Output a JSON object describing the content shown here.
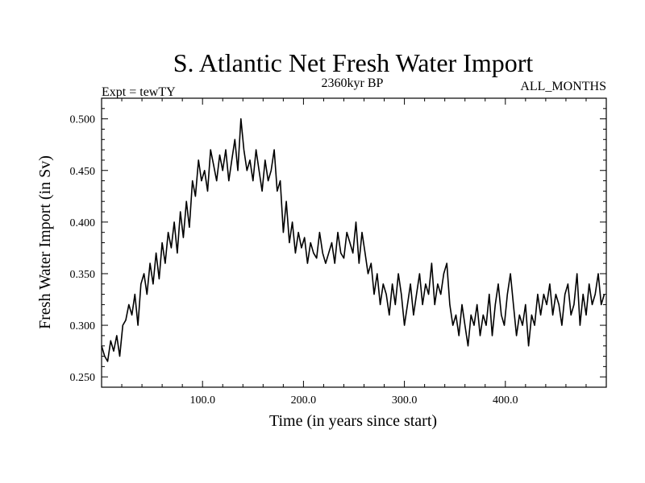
{
  "chart_data": {
    "type": "line",
    "title": "S. Atlantic Net Fresh Water Import",
    "subtitle_left": "Expt = tewTY",
    "subtitle_center": "2360kyr BP",
    "subtitle_right": "ALL_MONTHS",
    "xlabel": "Time (in years since start)",
    "ylabel": "Fresh Water Import (in Sv)",
    "xlim": [
      0,
      500
    ],
    "ylim": [
      0.24,
      0.52
    ],
    "xticks": [
      100,
      200,
      300,
      400
    ],
    "xtick_labels": [
      "100.0",
      "200.0",
      "300.0",
      "400.0"
    ],
    "yticks": [
      0.25,
      0.3,
      0.35,
      0.4,
      0.45,
      0.5
    ],
    "ytick_labels": [
      "0.250",
      "0.300",
      "0.350",
      "0.400",
      "0.450",
      "0.500"
    ],
    "grid": false,
    "series": [
      {
        "name": "fresh water import",
        "x": [
          0,
          3,
          6,
          9,
          12,
          15,
          18,
          21,
          24,
          27,
          30,
          33,
          36,
          39,
          42,
          45,
          48,
          51,
          54,
          57,
          60,
          63,
          66,
          69,
          72,
          75,
          78,
          81,
          84,
          87,
          90,
          93,
          96,
          99,
          102,
          105,
          108,
          111,
          114,
          117,
          120,
          123,
          126,
          129,
          132,
          135,
          138,
          141,
          144,
          147,
          150,
          153,
          156,
          159,
          162,
          165,
          168,
          171,
          174,
          177,
          180,
          183,
          186,
          189,
          192,
          195,
          198,
          201,
          204,
          207,
          210,
          213,
          216,
          219,
          222,
          225,
          228,
          231,
          234,
          237,
          240,
          243,
          246,
          249,
          252,
          255,
          258,
          261,
          264,
          267,
          270,
          273,
          276,
          279,
          282,
          285,
          288,
          291,
          294,
          297,
          300,
          303,
          306,
          309,
          312,
          315,
          318,
          321,
          324,
          327,
          330,
          333,
          336,
          339,
          342,
          345,
          348,
          351,
          354,
          357,
          360,
          363,
          366,
          369,
          372,
          375,
          378,
          381,
          384,
          387,
          390,
          393,
          396,
          399,
          402,
          405,
          408,
          411,
          414,
          417,
          420,
          423,
          426,
          429,
          432,
          435,
          438,
          441,
          444,
          447,
          450,
          453,
          456,
          459,
          462,
          465,
          468,
          471,
          474,
          477,
          480,
          483,
          486,
          489,
          492,
          495,
          498
        ],
        "values": [
          0.28,
          0.27,
          0.265,
          0.285,
          0.275,
          0.29,
          0.27,
          0.3,
          0.305,
          0.32,
          0.31,
          0.33,
          0.3,
          0.34,
          0.35,
          0.33,
          0.36,
          0.34,
          0.37,
          0.345,
          0.38,
          0.36,
          0.39,
          0.375,
          0.4,
          0.37,
          0.41,
          0.385,
          0.42,
          0.395,
          0.44,
          0.425,
          0.46,
          0.44,
          0.45,
          0.43,
          0.47,
          0.455,
          0.44,
          0.465,
          0.45,
          0.47,
          0.44,
          0.46,
          0.48,
          0.45,
          0.5,
          0.47,
          0.45,
          0.46,
          0.44,
          0.47,
          0.45,
          0.43,
          0.46,
          0.44,
          0.45,
          0.47,
          0.43,
          0.44,
          0.39,
          0.42,
          0.38,
          0.4,
          0.37,
          0.39,
          0.375,
          0.385,
          0.36,
          0.38,
          0.37,
          0.365,
          0.39,
          0.37,
          0.36,
          0.37,
          0.38,
          0.36,
          0.39,
          0.37,
          0.365,
          0.39,
          0.38,
          0.37,
          0.4,
          0.36,
          0.39,
          0.37,
          0.35,
          0.36,
          0.33,
          0.35,
          0.32,
          0.34,
          0.33,
          0.31,
          0.34,
          0.32,
          0.35,
          0.33,
          0.3,
          0.32,
          0.34,
          0.31,
          0.33,
          0.35,
          0.32,
          0.34,
          0.33,
          0.36,
          0.32,
          0.34,
          0.33,
          0.35,
          0.36,
          0.32,
          0.3,
          0.31,
          0.29,
          0.32,
          0.3,
          0.28,
          0.31,
          0.3,
          0.32,
          0.29,
          0.31,
          0.3,
          0.33,
          0.29,
          0.32,
          0.34,
          0.31,
          0.3,
          0.33,
          0.35,
          0.32,
          0.29,
          0.31,
          0.3,
          0.32,
          0.28,
          0.31,
          0.3,
          0.33,
          0.31,
          0.33,
          0.32,
          0.34,
          0.31,
          0.33,
          0.32,
          0.3,
          0.33,
          0.34,
          0.31,
          0.32,
          0.35,
          0.3,
          0.33,
          0.31,
          0.34,
          0.32,
          0.33,
          0.35,
          0.32,
          0.33
        ]
      }
    ]
  }
}
